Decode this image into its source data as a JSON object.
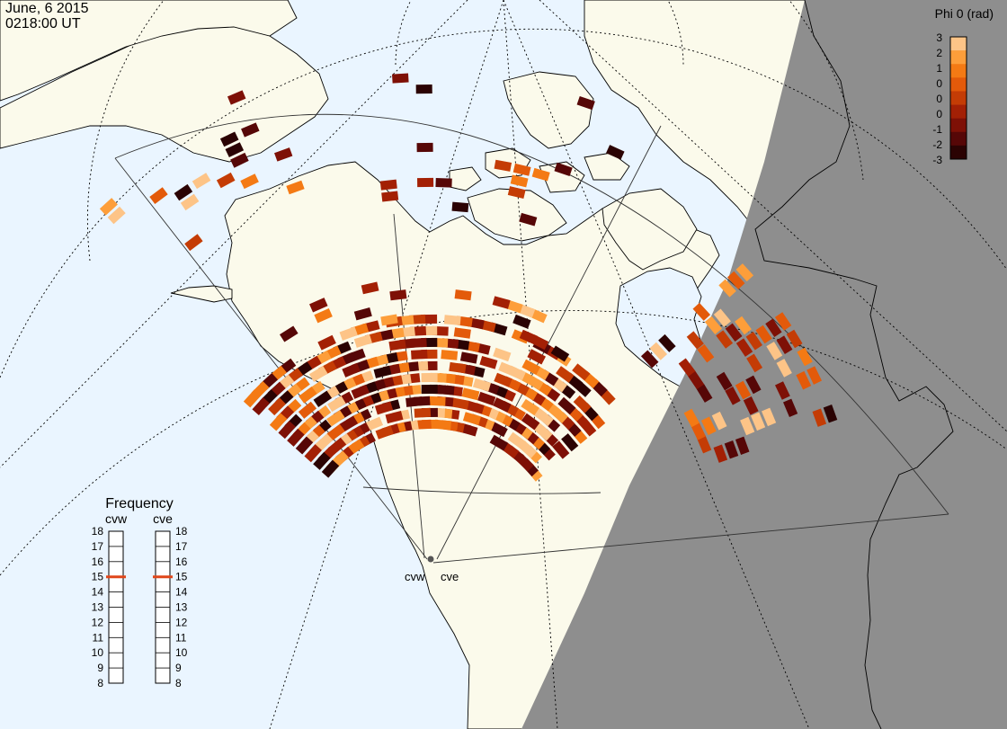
{
  "header": {
    "date": "June, 6 2015",
    "time": "0218:00 UT"
  },
  "colorbar": {
    "title": "Phi 0 (rad)",
    "tick_labels": [
      "3",
      "2",
      "1",
      "0",
      "0",
      "0",
      "-1",
      "-2",
      "-3"
    ],
    "colors": [
      "#fdc487",
      "#fd9e3a",
      "#f47a14",
      "#e35a0a",
      "#c43c05",
      "#a32005",
      "#7e1006",
      "#560707",
      "#2b0303"
    ]
  },
  "frequency_panel": {
    "title": "Frequency",
    "radars": [
      {
        "code": "cvw",
        "freq_mhz": 15
      },
      {
        "code": "cve",
        "freq_mhz": 15
      }
    ],
    "scale_labels": [
      "18",
      "17",
      "16",
      "15",
      "14",
      "13",
      "12",
      "11",
      "10",
      "9",
      "8"
    ],
    "scale_min": 8,
    "scale_max": 18,
    "marker_color": "#e0461a"
  },
  "radar_sites": [
    "cvw",
    "cve"
  ],
  "map_colors": {
    "ocean": "#eaf5ff",
    "land": "#fbfaeb",
    "night": "#8e8e8e",
    "coast": "#000000"
  }
}
